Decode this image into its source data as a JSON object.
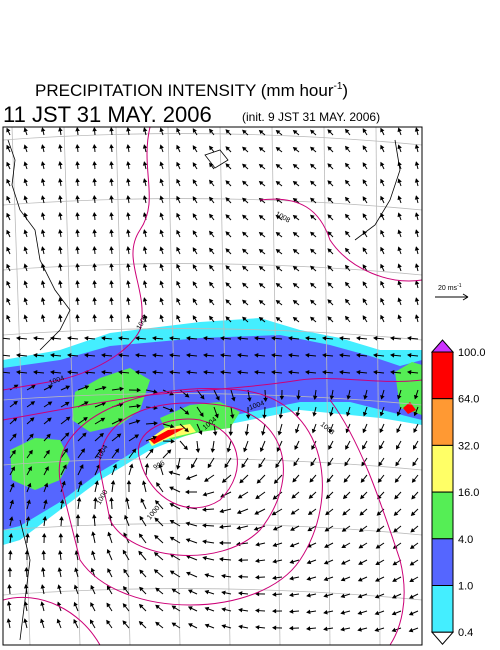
{
  "header": {
    "title": "PRECIPITATION INTENSITY (mm hour",
    "title_sup": "-1",
    "title_end": ")",
    "time": "11 JST 31 MAY. 2006",
    "init": "(init. 9 JST 31 MAY. 2006)"
  },
  "vector_scale": {
    "label": "20 ms",
    "sup": "-1"
  },
  "colorbar": {
    "levels": [
      "100.0",
      "64.0",
      "32.0",
      "16.0",
      "4.0",
      "1.0",
      "0.4"
    ],
    "colors": [
      "#cc33ff",
      "#ff0000",
      "#ff9933",
      "#ffff66",
      "#55ee55",
      "#5566ff",
      "#44eeff",
      "#ffffff"
    ]
  },
  "contours": {
    "labels": [
      "1008",
      "1008",
      "1004",
      "1004",
      "1000",
      "996",
      "1000",
      "1004",
      "1004",
      "1008"
    ]
  }
}
